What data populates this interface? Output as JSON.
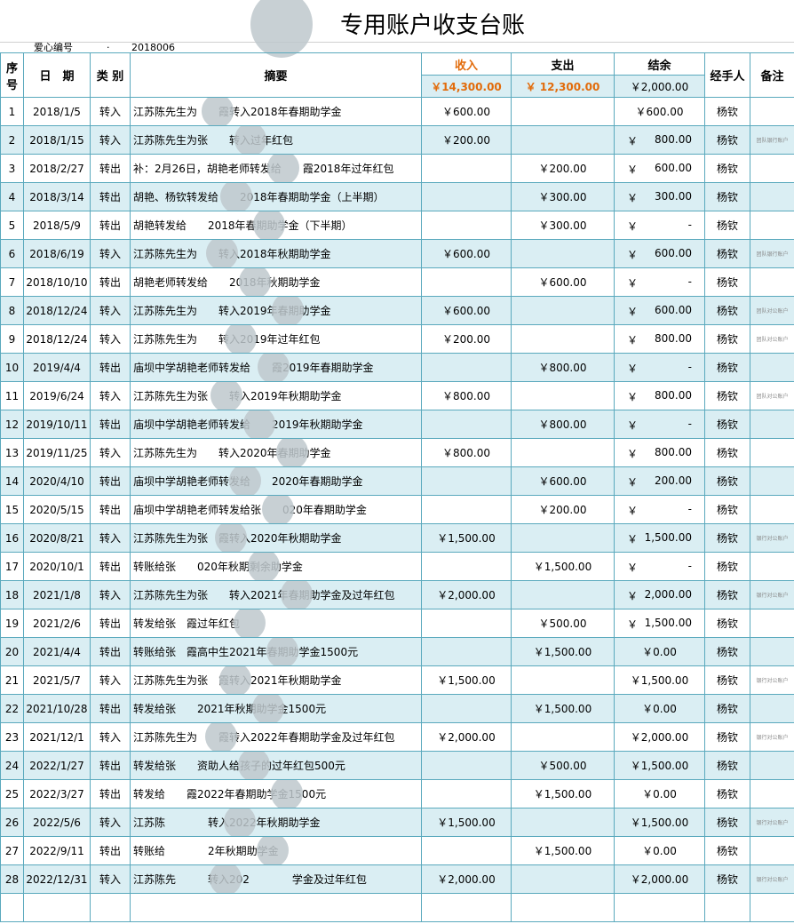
{
  "title": "专用账户收支台账",
  "meta": {
    "label": "爱心编号",
    "sep": "·",
    "value": "2018006"
  },
  "headers": {
    "no": "序号",
    "date": "日　期",
    "type": "类 别",
    "summary": "摘要",
    "income": "收入",
    "expense": "支出",
    "balance": "结余",
    "handler": "经手人",
    "note": "备注"
  },
  "totals": {
    "income": "￥14,300.00",
    "expense": "￥  12,300.00",
    "balance": "￥2,000.00"
  },
  "colors": {
    "border": "#5aa9bd",
    "row_alt": "#daeef3",
    "total_accent": "#e26b0a"
  },
  "rows": [
    {
      "no": "1",
      "date": "2018/1/5",
      "type": "转入",
      "summary": "江苏陈先生为　　霞转入2018年春期助学金",
      "income": "￥600.00",
      "expense": "",
      "balance": "￥600.00",
      "bal_style": "center",
      "handler": "杨钦",
      "note": ""
    },
    {
      "no": "2",
      "date": "2018/1/15",
      "type": "转入",
      "summary": "江苏陈先生为张　　转入过年红包",
      "income": "￥200.00",
      "expense": "",
      "balance": "800.00",
      "bal_style": "acc",
      "handler": "杨钦",
      "note": "团队银行账户"
    },
    {
      "no": "3",
      "date": "2018/2/27",
      "type": "转出",
      "summary": "补：2月26日，胡艳老师转发给　　霞2018年过年红包",
      "income": "",
      "expense": "￥200.00",
      "balance": "600.00",
      "bal_style": "acc",
      "handler": "杨钦",
      "note": ""
    },
    {
      "no": "4",
      "date": "2018/3/14",
      "type": "转出",
      "summary": "胡艳、杨钦转发给　　2018年春期助学金（上半期）",
      "income": "",
      "expense": "￥300.00",
      "balance": "300.00",
      "bal_style": "acc",
      "handler": "杨钦",
      "note": ""
    },
    {
      "no": "5",
      "date": "2018/5/9",
      "type": "转出",
      "summary": "胡艳转发给　　2018年春期助学金（下半期）",
      "income": "",
      "expense": "￥300.00",
      "balance": "-",
      "bal_style": "acc",
      "handler": "杨钦",
      "note": ""
    },
    {
      "no": "6",
      "date": "2018/6/19",
      "type": "转入",
      "summary": "江苏陈先生为　　转入2018年秋期助学金",
      "income": "￥600.00",
      "expense": "",
      "balance": "600.00",
      "bal_style": "acc",
      "handler": "杨钦",
      "note": "团队银行账户"
    },
    {
      "no": "7",
      "date": "2018/10/10",
      "type": "转出",
      "summary": "胡艳老师转发给　　2018年秋期助学金",
      "income": "",
      "expense": "￥600.00",
      "balance": "-",
      "bal_style": "acc",
      "handler": "杨钦",
      "note": ""
    },
    {
      "no": "8",
      "date": "2018/12/24",
      "type": "转入",
      "summary": "江苏陈先生为　　转入2019年春期助学金",
      "income": "￥600.00",
      "expense": "",
      "balance": "600.00",
      "bal_style": "acc",
      "handler": "杨钦",
      "note": "团队对公账户"
    },
    {
      "no": "9",
      "date": "2018/12/24",
      "type": "转入",
      "summary": "江苏陈先生为　　转入2019年过年红包",
      "income": "￥200.00",
      "expense": "",
      "balance": "800.00",
      "bal_style": "acc",
      "handler": "杨钦",
      "note": "团队对公账户"
    },
    {
      "no": "10",
      "date": "2019/4/4",
      "type": "转出",
      "summary": "庙坝中学胡艳老师转发给　　霞2019年春期助学金",
      "income": "",
      "expense": "￥800.00",
      "balance": "-",
      "bal_style": "acc",
      "handler": "杨钦",
      "note": ""
    },
    {
      "no": "11",
      "date": "2019/6/24",
      "type": "转入",
      "summary": "江苏陈先生为张　　转入2019年秋期助学金",
      "income": "￥800.00",
      "expense": "",
      "balance": "800.00",
      "bal_style": "acc",
      "handler": "杨钦",
      "note": "团队对公账户"
    },
    {
      "no": "12",
      "date": "2019/10/11",
      "type": "转出",
      "summary": "庙坝中学胡艳老师转发给　　2019年秋期助学金",
      "income": "",
      "expense": "￥800.00",
      "balance": "-",
      "bal_style": "acc",
      "handler": "杨钦",
      "note": ""
    },
    {
      "no": "13",
      "date": "2019/11/25",
      "type": "转入",
      "summary": "江苏陈先生为　　转入2020年春期助学金",
      "income": "￥800.00",
      "expense": "",
      "balance": "800.00",
      "bal_style": "acc",
      "handler": "杨钦",
      "note": ""
    },
    {
      "no": "14",
      "date": "2020/4/10",
      "type": "转出",
      "summary": "庙坝中学胡艳老师转发给　　2020年春期助学金",
      "income": "",
      "expense": "￥600.00",
      "balance": "200.00",
      "bal_style": "acc",
      "handler": "杨钦",
      "note": ""
    },
    {
      "no": "15",
      "date": "2020/5/15",
      "type": "转出",
      "summary": "庙坝中学胡艳老师转发给张　　020年春期助学金",
      "income": "",
      "expense": "￥200.00",
      "balance": "-",
      "bal_style": "acc",
      "handler": "杨钦",
      "note": ""
    },
    {
      "no": "16",
      "date": "2020/8/21",
      "type": "转入",
      "summary": "江苏陈先生为张　霞转入2020年秋期助学金",
      "income": "￥1,500.00",
      "expense": "",
      "balance": "1,500.00",
      "bal_style": "acc",
      "handler": "杨钦",
      "note": "银行对公账户"
    },
    {
      "no": "17",
      "date": "2020/10/1",
      "type": "转出",
      "summary": "转账给张　　020年秋期剩余助学金",
      "income": "",
      "expense": "￥1,500.00",
      "balance": "-",
      "bal_style": "acc",
      "handler": "杨钦",
      "note": ""
    },
    {
      "no": "18",
      "date": "2021/1/8",
      "type": "转入",
      "summary": "江苏陈先生为张　　转入2021年春期助学金及过年红包",
      "income": "￥2,000.00",
      "expense": "",
      "balance": "2,000.00",
      "bal_style": "acc",
      "handler": "杨钦",
      "note": "银行对公账户"
    },
    {
      "no": "19",
      "date": "2021/2/6",
      "type": "转出",
      "summary": "转发给张　霞过年红包",
      "income": "",
      "expense": "￥500.00",
      "balance": "1,500.00",
      "bal_style": "acc",
      "handler": "杨钦",
      "note": ""
    },
    {
      "no": "20",
      "date": "2021/4/4",
      "type": "转出",
      "summary": "转账给张　霞高中生2021年春期助学金1500元",
      "income": "",
      "expense": "￥1,500.00",
      "balance": "￥0.00",
      "bal_style": "center",
      "handler": "杨钦",
      "note": ""
    },
    {
      "no": "21",
      "date": "2021/5/7",
      "type": "转入",
      "summary": "江苏陈先生为张　霞转入2021年秋期助学金",
      "income": "￥1,500.00",
      "expense": "",
      "balance": "￥1,500.00",
      "bal_style": "center",
      "handler": "杨钦",
      "note": "银行对公账户"
    },
    {
      "no": "22",
      "date": "2021/10/28",
      "type": "转出",
      "summary": "转发给张　　2021年秋期助学金1500元",
      "income": "",
      "expense": "￥1,500.00",
      "balance": "￥0.00",
      "bal_style": "center",
      "handler": "杨钦",
      "note": ""
    },
    {
      "no": "23",
      "date": "2021/12/1",
      "type": "转入",
      "summary": "江苏陈先生为　　霞转入2022年春期助学金及过年红包",
      "income": "￥2,000.00",
      "expense": "",
      "balance": "￥2,000.00",
      "bal_style": "center",
      "handler": "杨钦",
      "note": "银行对公账户"
    },
    {
      "no": "24",
      "date": "2022/1/27",
      "type": "转出",
      "summary": "转发给张　　资助人给孩子的过年红包500元",
      "income": "",
      "expense": "￥500.00",
      "balance": "￥1,500.00",
      "bal_style": "center",
      "handler": "杨钦",
      "note": ""
    },
    {
      "no": "25",
      "date": "2022/3/27",
      "type": "转出",
      "summary": "转发给　　霞2022年春期助学金1500元",
      "income": "",
      "expense": "￥1,500.00",
      "balance": "￥0.00",
      "bal_style": "center",
      "handler": "杨钦",
      "note": ""
    },
    {
      "no": "26",
      "date": "2022/5/6",
      "type": "转入",
      "summary": "江苏陈　　　　转入2022年秋期助学金",
      "income": "￥1,500.00",
      "expense": "",
      "balance": "￥1,500.00",
      "bal_style": "center",
      "handler": "杨钦",
      "note": "银行对公账户"
    },
    {
      "no": "27",
      "date": "2022/9/11",
      "type": "转出",
      "summary": "转账给　　　　2年秋期助学金",
      "income": "",
      "expense": "￥1,500.00",
      "balance": "￥0.00",
      "bal_style": "center",
      "handler": "杨钦",
      "note": ""
    },
    {
      "no": "28",
      "date": "2022/12/31",
      "type": "转入",
      "summary": "江苏陈先　　　转入202　　　　学金及过年红包",
      "income": "￥2,000.00",
      "expense": "",
      "balance": "￥2,000.00",
      "bal_style": "center",
      "handler": "杨钦",
      "note": "银行对公账户"
    }
  ]
}
